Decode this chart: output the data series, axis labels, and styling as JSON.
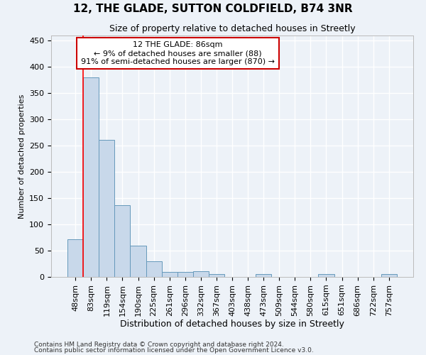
{
  "title1": "12, THE GLADE, SUTTON COLDFIELD, B74 3NR",
  "title2": "Size of property relative to detached houses in Streetly",
  "xlabel": "Distribution of detached houses by size in Streetly",
  "ylabel": "Number of detached properties",
  "bar_labels": [
    "48sqm",
    "83sqm",
    "119sqm",
    "154sqm",
    "190sqm",
    "225sqm",
    "261sqm",
    "296sqm",
    "332sqm",
    "367sqm",
    "403sqm",
    "438sqm",
    "473sqm",
    "509sqm",
    "544sqm",
    "580sqm",
    "615sqm",
    "651sqm",
    "686sqm",
    "722sqm",
    "757sqm"
  ],
  "bar_heights": [
    72,
    380,
    261,
    136,
    60,
    30,
    10,
    10,
    11,
    6,
    0,
    0,
    5,
    0,
    0,
    0,
    5,
    0,
    0,
    0,
    5
  ],
  "bar_color": "#c8d8ea",
  "bar_edge_color": "#6699bb",
  "red_line_index": 1,
  "annotation_lines": [
    "12 THE GLADE: 86sqm",
    "← 9% of detached houses are smaller (88)",
    "91% of semi-detached houses are larger (870) →"
  ],
  "ylim": [
    0,
    460
  ],
  "yticks": [
    0,
    50,
    100,
    150,
    200,
    250,
    300,
    350,
    400,
    450
  ],
  "footer1": "Contains HM Land Registry data © Crown copyright and database right 2024.",
  "footer2": "Contains public sector information licensed under the Open Government Licence v3.0.",
  "bg_color": "#edf2f8",
  "grid_color": "#ffffff",
  "annotation_box_color": "#ffffff",
  "annotation_box_edge": "#cc0000",
  "title1_fontsize": 11,
  "title2_fontsize": 9,
  "ylabel_fontsize": 8,
  "xlabel_fontsize": 9,
  "tick_fontsize": 8,
  "annotation_fontsize": 8,
  "footer_fontsize": 6.5
}
